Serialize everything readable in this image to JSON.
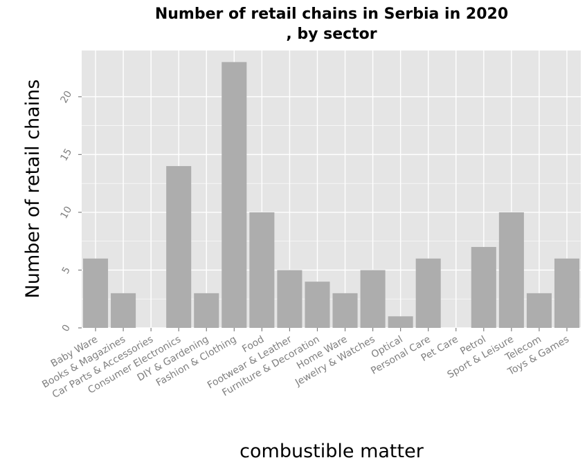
{
  "chart_data": {
    "type": "bar",
    "title_line1": "Number of retail chains in Serbia in 2020",
    "title_line2": ", by sector",
    "xlabel": "combustible matter",
    "ylabel": "Number of retail chains",
    "ylim": [
      0,
      24
    ],
    "yticks": [
      0,
      5,
      10,
      15,
      20
    ],
    "grid": true,
    "categories": [
      "Baby Ware",
      "Books & Magazines",
      "Car Parts & Accessories",
      "Consumer Electronics",
      "DIY & Gardening",
      "Fashion & Clothing",
      "Food",
      "Footwear & Leather",
      "Furniture & Decoration",
      "Home Ware",
      "Jewelry & Watches",
      "Optical",
      "Personal Care",
      "Pet Care",
      "Petrol",
      "Sport & Leisure",
      "Telecom",
      "Toys & Games"
    ],
    "values": [
      6,
      3,
      0,
      14,
      3,
      23,
      10,
      5,
      4,
      3,
      5,
      1,
      6,
      0,
      7,
      10,
      3,
      6
    ],
    "colors": {
      "panel": "#e5e5e5",
      "bar": "#adadad",
      "grid": "#ffffff",
      "tick": "#7f7f7f"
    }
  }
}
